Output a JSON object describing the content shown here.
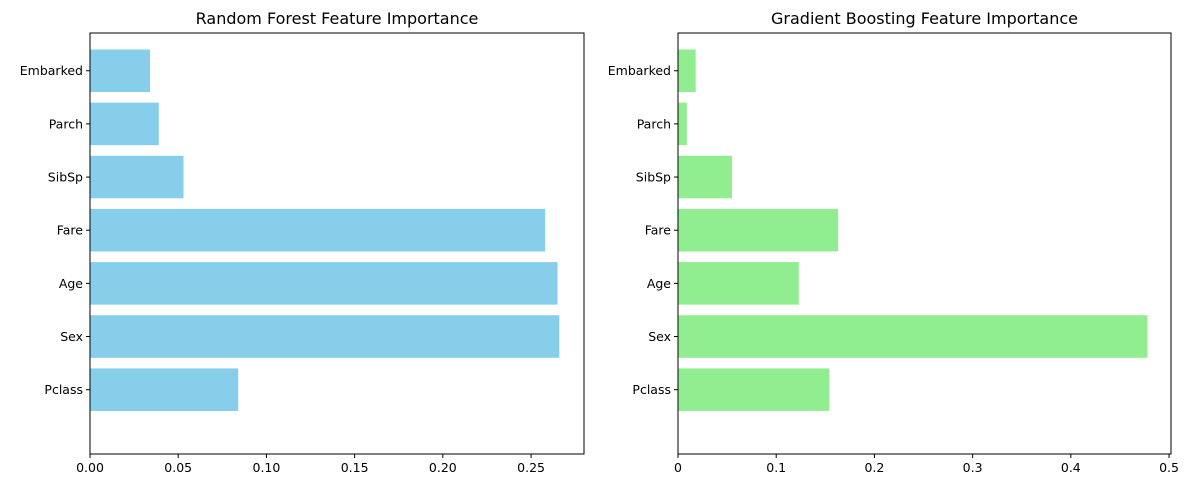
{
  "chart_data": [
    {
      "type": "bar",
      "orientation": "horizontal",
      "title": "Random Forest Feature Importance",
      "categories": [
        "Pclass",
        "Sex",
        "Age",
        "Fare",
        "SibSp",
        "Parch",
        "Embarked"
      ],
      "values": [
        0.084,
        0.266,
        0.265,
        0.258,
        0.053,
        0.039,
        0.034
      ],
      "xlim": [
        0,
        0.28
      ],
      "xticks": [
        0.0,
        0.05,
        0.1,
        0.15,
        0.2,
        0.25
      ],
      "xtick_labels": [
        "0.00",
        "0.05",
        "0.10",
        "0.15",
        "0.20",
        "0.25"
      ],
      "color": "#87CEEB",
      "grid": false
    },
    {
      "type": "bar",
      "orientation": "horizontal",
      "title": "Gradient Boosting Feature Importance",
      "categories": [
        "Pclass",
        "Sex",
        "Age",
        "Fare",
        "SibSp",
        "Parch",
        "Embarked"
      ],
      "values": [
        0.154,
        0.478,
        0.123,
        0.163,
        0.055,
        0.009,
        0.018
      ],
      "xlim": [
        0,
        0.502
      ],
      "xticks": [
        0.0,
        0.1,
        0.2,
        0.3,
        0.4,
        0.5
      ],
      "xtick_labels": [
        "0",
        "0.1",
        "0.2",
        "0.3",
        "0.4",
        "0.5"
      ],
      "color": "#90EE90",
      "grid": false
    }
  ]
}
